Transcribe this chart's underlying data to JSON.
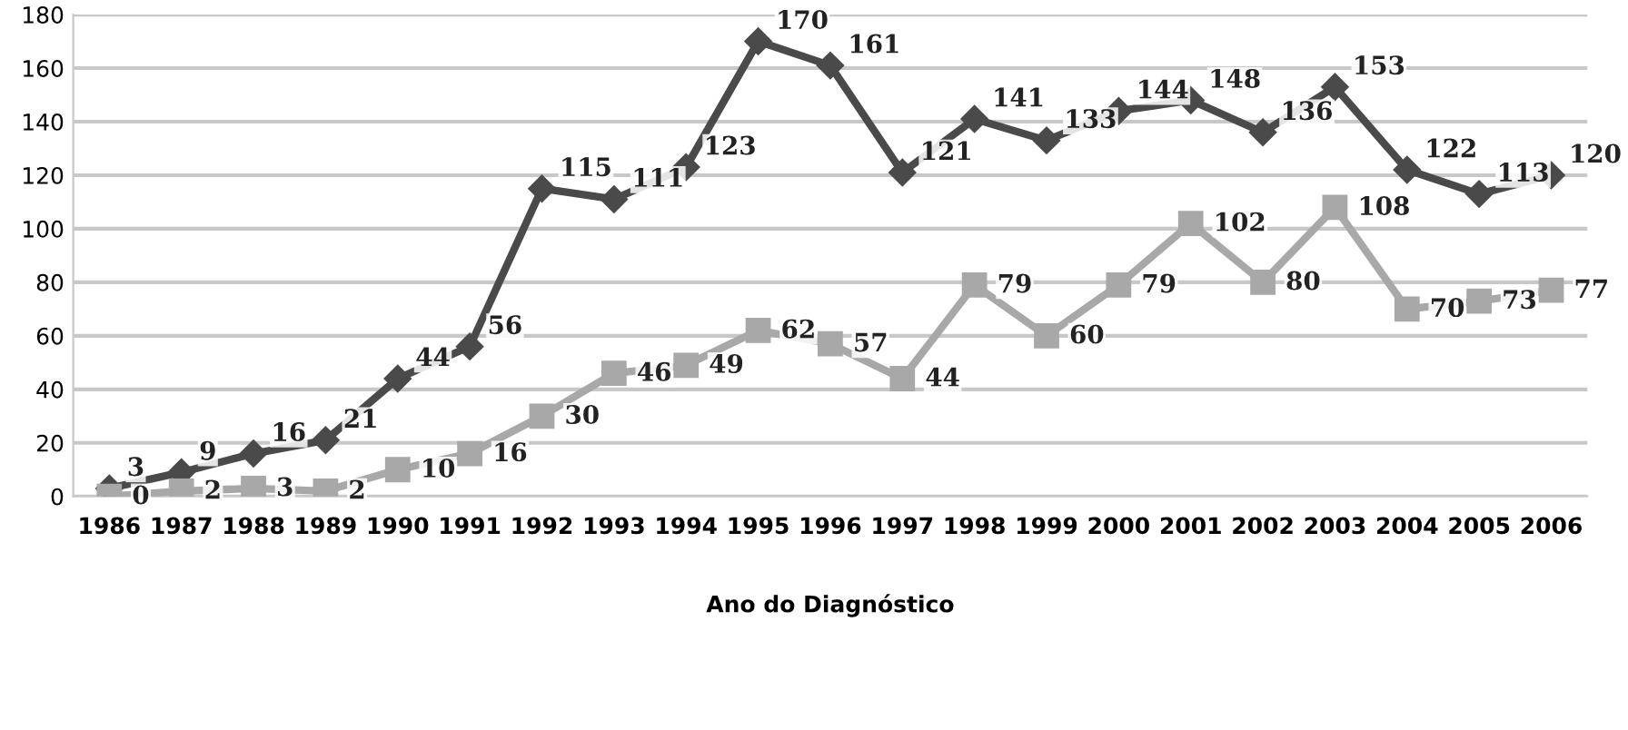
{
  "chart_data": {
    "type": "line",
    "xlabel": "Ano do Diagnóstico",
    "categories": [
      "1986",
      "1987",
      "1988",
      "1989",
      "1990",
      "1991",
      "1992",
      "1993",
      "1994",
      "1995",
      "1996",
      "1997",
      "1998",
      "1999",
      "2000",
      "2001",
      "2002",
      "2003",
      "2004",
      "2005",
      "2006"
    ],
    "series": [
      {
        "color": "#4a4a4a",
        "marker": "diamond",
        "values": [
          3,
          9,
          16,
          21,
          44,
          56,
          115,
          111,
          123,
          170,
          161,
          121,
          141,
          133,
          144,
          148,
          136,
          153,
          122,
          113,
          120
        ]
      },
      {
        "color": "#a8a8a8",
        "marker": "square",
        "values": [
          0,
          2,
          3,
          2,
          10,
          16,
          30,
          46,
          49,
          62,
          57,
          44,
          79,
          60,
          79,
          102,
          80,
          108,
          70,
          73,
          77
        ]
      }
    ],
    "ylim": [
      0,
      180
    ],
    "yticks": [
      0,
      20,
      40,
      60,
      80,
      100,
      120,
      140,
      160,
      180
    ],
    "grid": "y",
    "legend": false,
    "data_labels": true,
    "line_style": "solid"
  }
}
